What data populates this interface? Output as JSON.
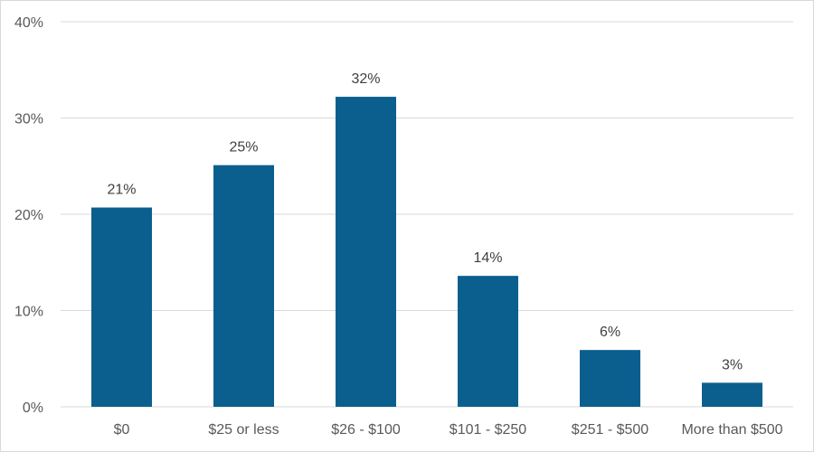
{
  "chart_data": {
    "type": "bar",
    "categories": [
      "$0",
      "$25 or less",
      "$26 - $100",
      "$101 - $250",
      "$251 - $500",
      "More than $500"
    ],
    "values": [
      20.7,
      25.1,
      32.2,
      13.6,
      5.9,
      2.5
    ],
    "data_labels": [
      "21%",
      "25%",
      "32%",
      "14%",
      "6%",
      "3%"
    ],
    "ylim": [
      0,
      40
    ],
    "yticks": [
      0,
      10,
      20,
      30,
      40
    ],
    "ytick_labels": [
      "0%",
      "10%",
      "20%",
      "30%",
      "40%"
    ],
    "grid": true,
    "bar_color": "#0b5f8e"
  }
}
